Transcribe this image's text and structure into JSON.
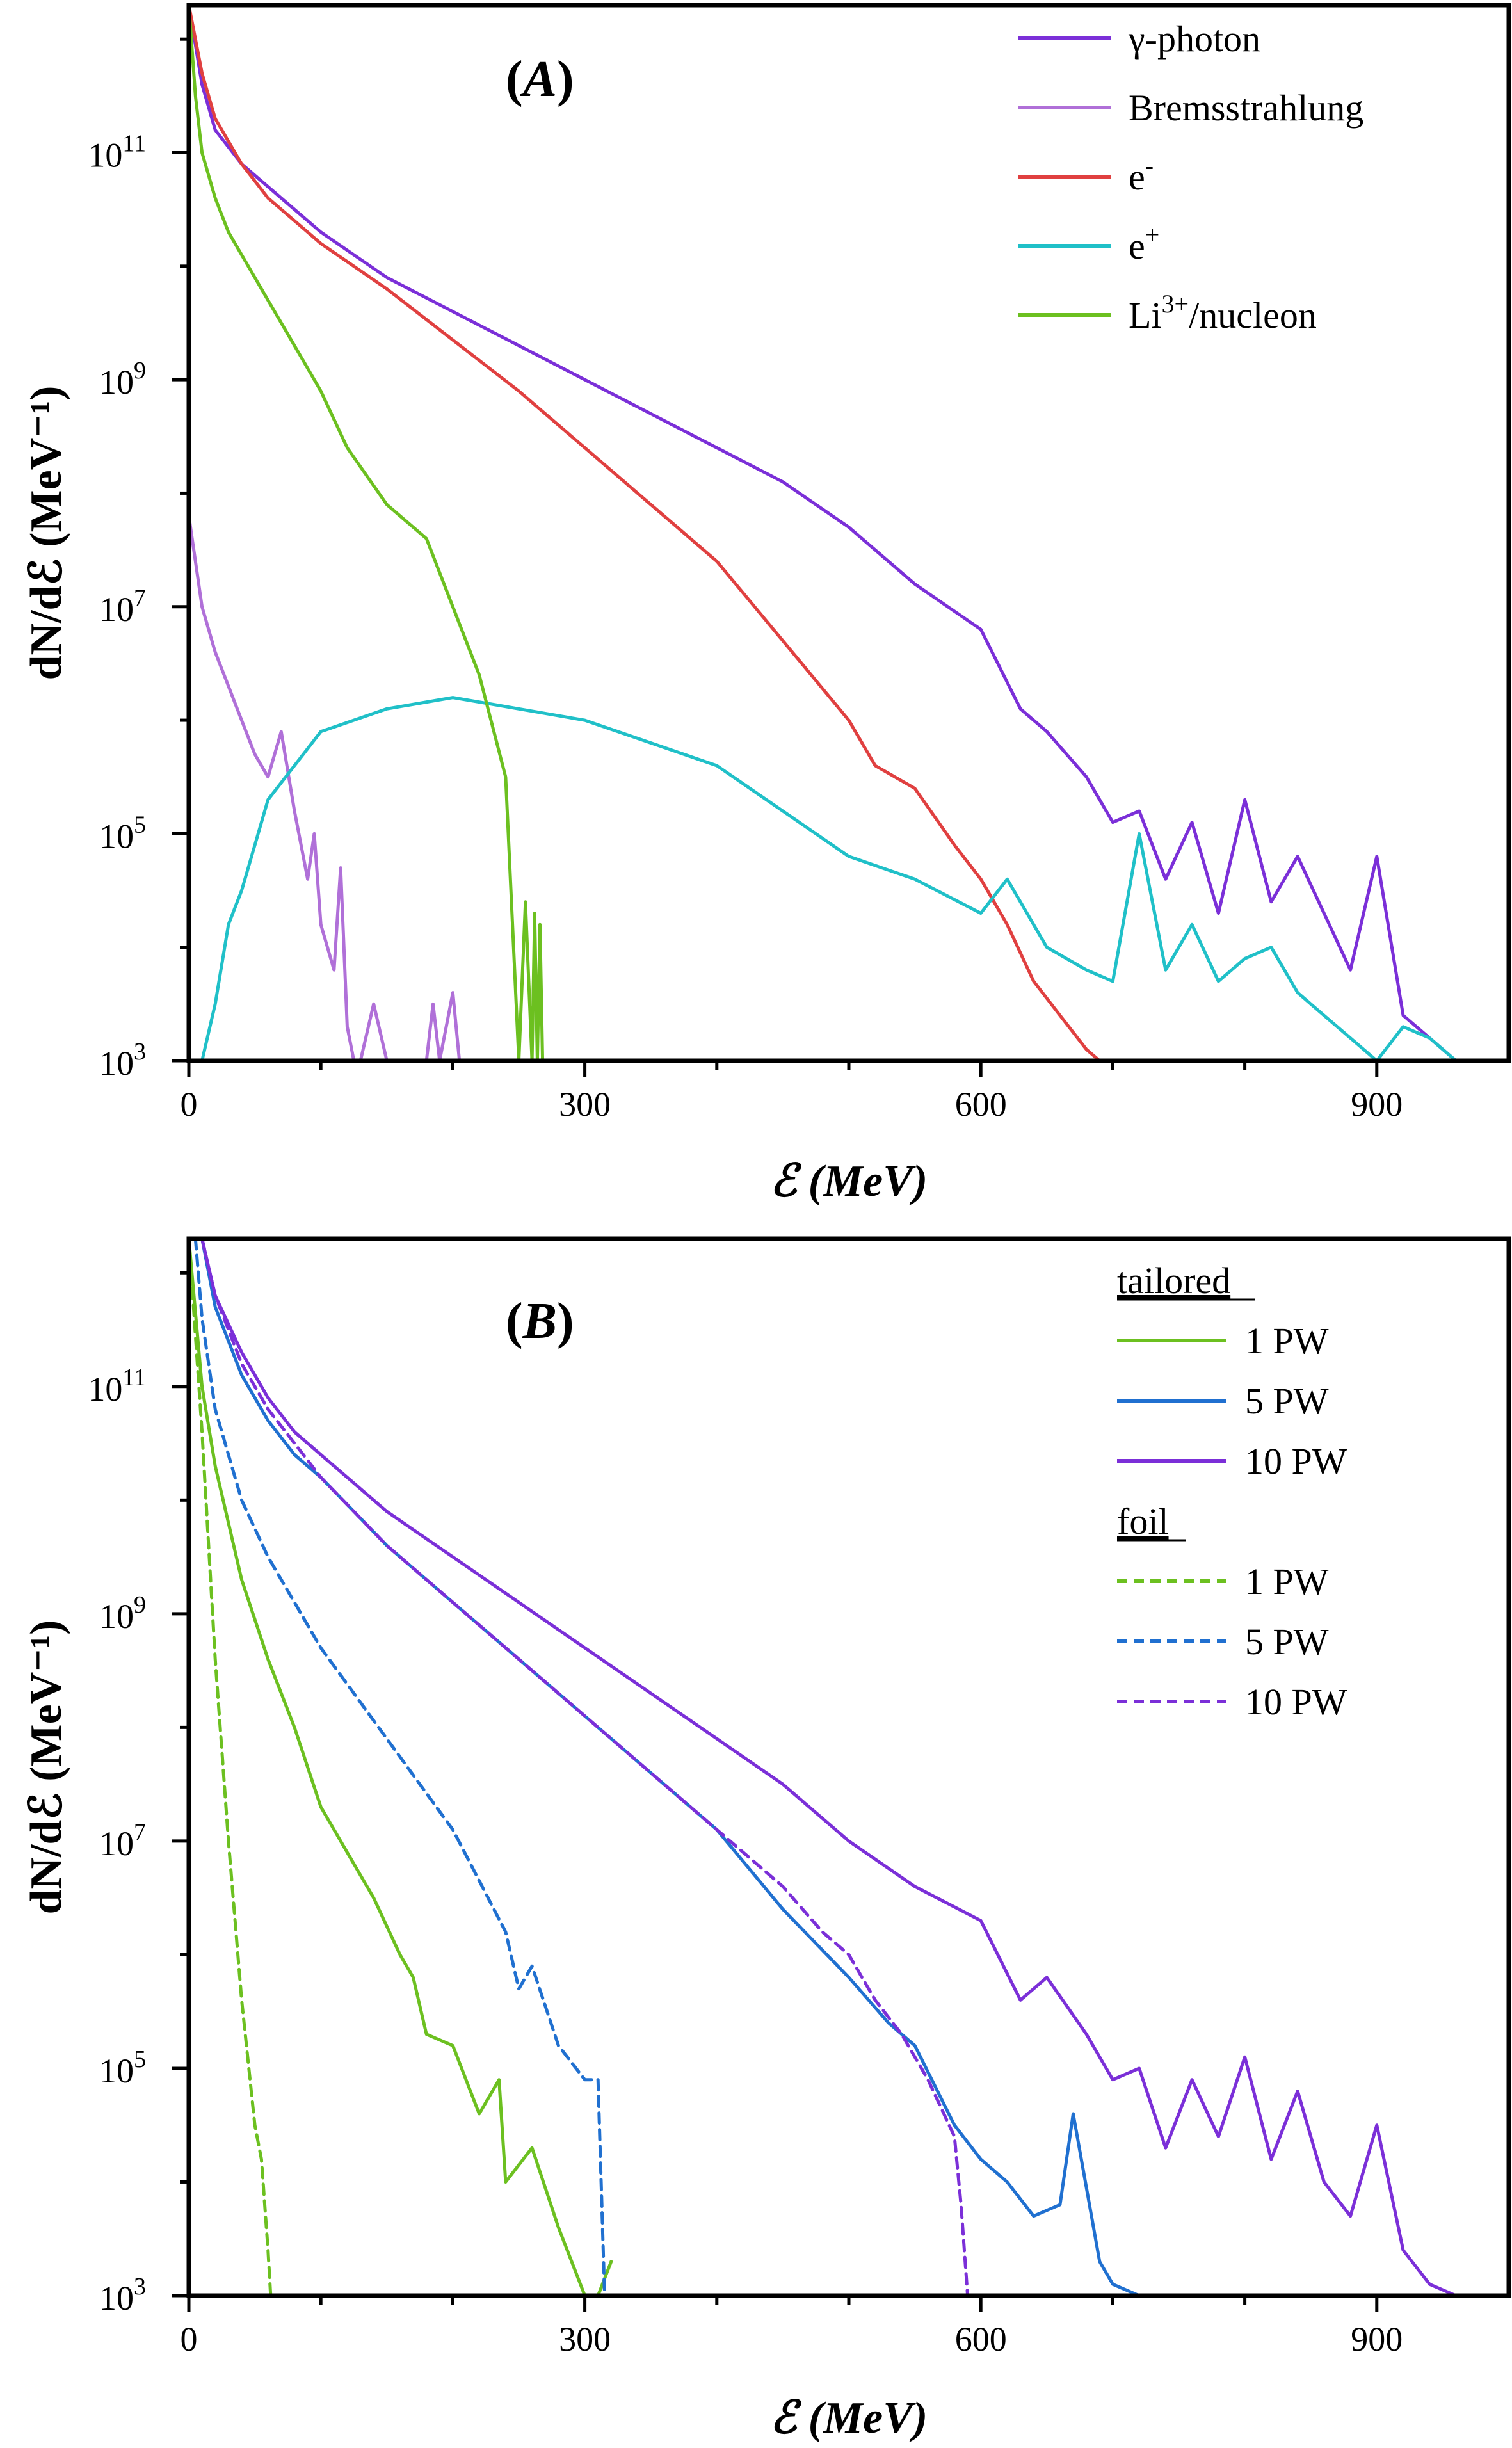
{
  "chart_data": [
    {
      "type": "line",
      "panel": "A",
      "title": "(A)",
      "panel_tag_main": "A",
      "xlabel": "ℰ (MeV)",
      "ylabel": "dN/dℰ (MeV⁻¹)",
      "xlim": [
        0,
        1000
      ],
      "ylim_log10": [
        3,
        12.3
      ],
      "x_ticks": [
        {
          "value": 0,
          "label": "0"
        },
        {
          "value": 300,
          "label": "300"
        },
        {
          "value": 600,
          "label": "600"
        },
        {
          "value": 900,
          "label": "900"
        }
      ],
      "y_ticks": [
        {
          "exp": 3,
          "base": "10",
          "sup": "3"
        },
        {
          "exp": 5,
          "base": "10",
          "sup": "5"
        },
        {
          "exp": 7,
          "base": "10",
          "sup": "7"
        },
        {
          "exp": 9,
          "base": "10",
          "sup": "9"
        },
        {
          "exp": 11,
          "base": "10",
          "sup": "11"
        }
      ],
      "legend_position": "top-right",
      "series": [
        {
          "name": "γ-photon",
          "label_main": "γ-photon",
          "label_sup": "",
          "label_tail": "",
          "color": "#7B2FD8",
          "dashed": false,
          "x": [
            0,
            10,
            20,
            40,
            60,
            80,
            100,
            150,
            200,
            250,
            300,
            350,
            400,
            450,
            500,
            550,
            600,
            630,
            650,
            680,
            700,
            720,
            740,
            760,
            780,
            800,
            820,
            840,
            860,
            880,
            900,
            920,
            940,
            960,
            975
          ],
          "y": [
            12.3,
            11.6,
            11.2,
            10.9,
            10.7,
            10.5,
            10.3,
            9.9,
            9.6,
            9.3,
            9.0,
            8.7,
            8.4,
            8.1,
            7.7,
            7.2,
            6.8,
            6.1,
            5.9,
            5.5,
            5.1,
            5.2,
            4.6,
            5.1,
            4.3,
            5.3,
            4.4,
            4.8,
            4.3,
            3.8,
            4.8,
            3.4,
            3.2,
            3.0,
            3.0
          ]
        },
        {
          "name": "Bremsstrahlung",
          "label_main": "Bremsstrahlung",
          "label_sup": "",
          "label_tail": "",
          "color": "#B070D8",
          "dashed": false,
          "x": [
            0,
            10,
            20,
            30,
            40,
            50,
            60,
            70,
            80,
            90,
            95,
            100,
            110,
            115,
            120,
            125,
            130,
            140,
            150,
            180,
            185,
            190,
            200,
            205
          ],
          "y": [
            7.8,
            7.0,
            6.6,
            6.3,
            6.0,
            5.7,
            5.5,
            5.9,
            5.2,
            4.6,
            5.0,
            4.2,
            3.8,
            4.7,
            3.3,
            3.0,
            3.0,
            3.5,
            3.0,
            3.0,
            3.5,
            3.0,
            3.6,
            3.0
          ]
        },
        {
          "name": "e⁻",
          "label_main": "e",
          "label_sup": "-",
          "label_tail": "",
          "color": "#E04040",
          "dashed": false,
          "x": [
            0,
            10,
            20,
            40,
            60,
            80,
            100,
            150,
            200,
            250,
            300,
            350,
            400,
            450,
            500,
            520,
            550,
            580,
            600,
            620,
            640,
            660,
            680,
            690
          ],
          "y": [
            12.3,
            11.7,
            11.3,
            10.9,
            10.6,
            10.4,
            10.2,
            9.8,
            9.35,
            8.9,
            8.4,
            7.9,
            7.4,
            6.7,
            6.0,
            5.6,
            5.4,
            4.9,
            4.6,
            4.2,
            3.7,
            3.4,
            3.1,
            3.0
          ]
        },
        {
          "name": "e⁺",
          "label_main": "e",
          "label_sup": "+",
          "label_tail": "",
          "color": "#20C0C8",
          "dashed": false,
          "x": [
            10,
            20,
            30,
            40,
            60,
            80,
            100,
            150,
            200,
            250,
            300,
            350,
            400,
            450,
            500,
            550,
            600,
            620,
            650,
            680,
            700,
            720,
            740,
            760,
            780,
            800,
            820,
            840,
            860,
            880,
            900,
            920,
            940,
            960,
            975
          ],
          "y": [
            3.0,
            3.5,
            4.2,
            4.5,
            5.3,
            5.6,
            5.9,
            6.1,
            6.2,
            6.1,
            6.0,
            5.8,
            5.6,
            5.2,
            4.8,
            4.6,
            4.3,
            4.6,
            4.0,
            3.8,
            3.7,
            5.0,
            3.8,
            4.2,
            3.7,
            3.9,
            4.0,
            3.6,
            3.4,
            3.2,
            3.0,
            3.3,
            3.2,
            3.0,
            3.0
          ]
        },
        {
          "name": "Li³⁺/nucleon",
          "label_main": "Li",
          "label_sup": "3+",
          "label_tail": "/nucleon",
          "color": "#6CC020",
          "dashed": false,
          "x": [
            0,
            5,
            10,
            20,
            30,
            40,
            60,
            80,
            100,
            120,
            150,
            180,
            200,
            220,
            240,
            250,
            255,
            260,
            262,
            264,
            266,
            268,
            270
          ],
          "y": [
            12.3,
            11.5,
            11.0,
            10.6,
            10.3,
            10.1,
            9.7,
            9.3,
            8.9,
            8.4,
            7.9,
            7.6,
            7.0,
            6.4,
            5.5,
            3.0,
            4.4,
            3.0,
            4.3,
            3.0,
            4.2,
            3.0,
            3.0
          ]
        }
      ]
    },
    {
      "type": "line",
      "panel": "B",
      "title": "(B)",
      "panel_tag_main": "B",
      "xlabel": "ℰ (MeV)",
      "ylabel": "dN/dℰ (MeV⁻¹)",
      "xlim": [
        0,
        1000
      ],
      "ylim_log10": [
        3,
        12.3
      ],
      "x_ticks": [
        {
          "value": 0,
          "label": "0"
        },
        {
          "value": 300,
          "label": "300"
        },
        {
          "value": 600,
          "label": "600"
        },
        {
          "value": 900,
          "label": "900"
        }
      ],
      "y_ticks": [
        {
          "exp": 3,
          "base": "10",
          "sup": "3"
        },
        {
          "exp": 5,
          "base": "10",
          "sup": "5"
        },
        {
          "exp": 7,
          "base": "10",
          "sup": "7"
        },
        {
          "exp": 9,
          "base": "10",
          "sup": "9"
        },
        {
          "exp": 11,
          "base": "10",
          "sup": "11"
        }
      ],
      "legend_position": "top-right",
      "legend_groups": [
        "tailored",
        "foil"
      ],
      "series": [
        {
          "name": "tailored 1 PW",
          "group": "tailored",
          "label_main": "1 PW",
          "label_sup": "",
          "label_tail": "",
          "color": "#6CC020",
          "dashed": false,
          "x": [
            0,
            10,
            20,
            40,
            60,
            80,
            100,
            120,
            140,
            160,
            170,
            180,
            200,
            220,
            235,
            240,
            260,
            280,
            290,
            300,
            310,
            320
          ],
          "y": [
            12.3,
            11.0,
            10.3,
            9.3,
            8.6,
            8.0,
            7.3,
            6.9,
            6.5,
            6.0,
            5.8,
            5.3,
            5.2,
            4.6,
            4.9,
            4.0,
            4.3,
            3.6,
            3.3,
            3.0,
            3.0,
            3.3
          ]
        },
        {
          "name": "tailored 5 PW",
          "group": "tailored",
          "label_main": "5 PW",
          "label_sup": "",
          "label_tail": "",
          "color": "#2070D0",
          "dashed": false,
          "x": [
            10,
            20,
            40,
            60,
            80,
            100,
            150,
            200,
            250,
            300,
            350,
            400,
            450,
            500,
            530,
            550,
            580,
            600,
            620,
            640,
            660,
            670,
            690,
            700,
            720,
            745
          ],
          "y": [
            12.3,
            11.7,
            11.1,
            10.7,
            10.4,
            10.2,
            9.6,
            9.1,
            8.6,
            8.1,
            7.6,
            7.1,
            6.4,
            5.8,
            5.4,
            5.2,
            4.5,
            4.2,
            4.0,
            3.7,
            3.8,
            4.6,
            3.3,
            3.1,
            3.0,
            3.0
          ]
        },
        {
          "name": "tailored 10 PW",
          "group": "tailored",
          "label_main": "10 PW",
          "label_sup": "",
          "label_tail": "",
          "color": "#7B2FD8",
          "dashed": false,
          "x": [
            10,
            20,
            40,
            60,
            80,
            100,
            150,
            200,
            250,
            300,
            350,
            400,
            450,
            500,
            550,
            600,
            630,
            650,
            680,
            700,
            720,
            740,
            760,
            780,
            800,
            820,
            840,
            860,
            880,
            900,
            920,
            940,
            960
          ],
          "y": [
            12.3,
            11.8,
            11.3,
            10.9,
            10.6,
            10.4,
            9.9,
            9.5,
            9.1,
            8.7,
            8.3,
            7.9,
            7.5,
            7.0,
            6.6,
            6.3,
            5.6,
            5.8,
            5.3,
            4.9,
            5.0,
            4.3,
            4.9,
            4.4,
            5.1,
            4.2,
            4.8,
            4.0,
            3.7,
            4.5,
            3.4,
            3.1,
            3.0
          ]
        },
        {
          "name": "foil 1 PW",
          "group": "foil",
          "label_main": "1 PW",
          "label_sup": "",
          "label_tail": "",
          "color": "#6CC020",
          "dashed": true,
          "x": [
            0,
            10,
            20,
            30,
            40,
            50,
            55,
            60,
            62
          ],
          "y": [
            12.3,
            10.6,
            8.6,
            7.0,
            5.6,
            4.5,
            4.2,
            3.4,
            3.0
          ]
        },
        {
          "name": "foil 5 PW",
          "group": "foil",
          "label_main": "5 PW",
          "label_sup": "",
          "label_tail": "",
          "color": "#2070D0",
          "dashed": true,
          "x": [
            5,
            10,
            20,
            40,
            60,
            80,
            100,
            150,
            200,
            240,
            250,
            260,
            280,
            300,
            310,
            315
          ],
          "y": [
            12.3,
            11.6,
            10.8,
            10.0,
            9.5,
            9.1,
            8.7,
            7.9,
            7.1,
            6.2,
            5.7,
            5.9,
            5.2,
            4.9,
            4.9,
            3.0
          ]
        },
        {
          "name": "foil 10 PW",
          "group": "foil",
          "label_main": "10 PW",
          "label_sup": "",
          "label_tail": "",
          "color": "#7B2FD8",
          "dashed": true,
          "x": [
            10,
            20,
            40,
            60,
            80,
            100,
            150,
            200,
            250,
            300,
            350,
            400,
            450,
            480,
            500,
            520,
            540,
            560,
            580,
            585,
            590
          ],
          "y": [
            12.3,
            11.8,
            11.2,
            10.8,
            10.5,
            10.2,
            9.6,
            9.1,
            8.6,
            8.1,
            7.6,
            7.1,
            6.6,
            6.2,
            6.0,
            5.6,
            5.3,
            4.9,
            4.4,
            3.8,
            3.0
          ]
        }
      ]
    }
  ]
}
